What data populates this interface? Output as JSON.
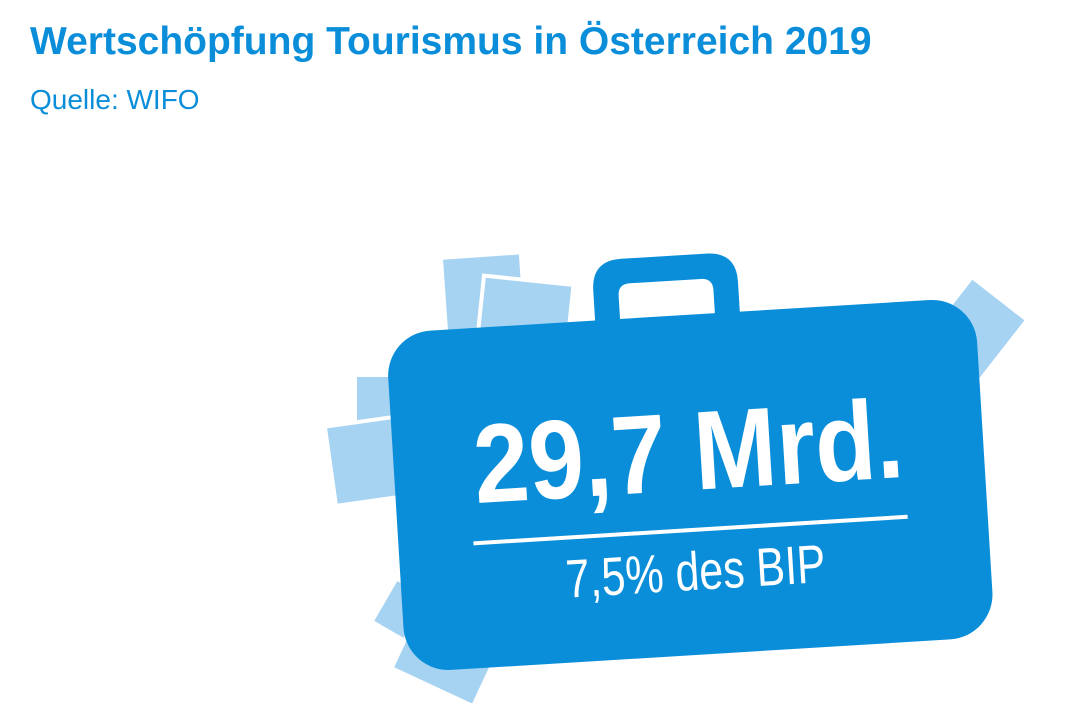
{
  "header": {
    "title": "Wertschöpfung Tourismus in Österreich 2019",
    "source": "Quelle: WIFO"
  },
  "suitcase": {
    "value": "29,7 Mrd.",
    "share": "7,5% des BIP"
  }
}
